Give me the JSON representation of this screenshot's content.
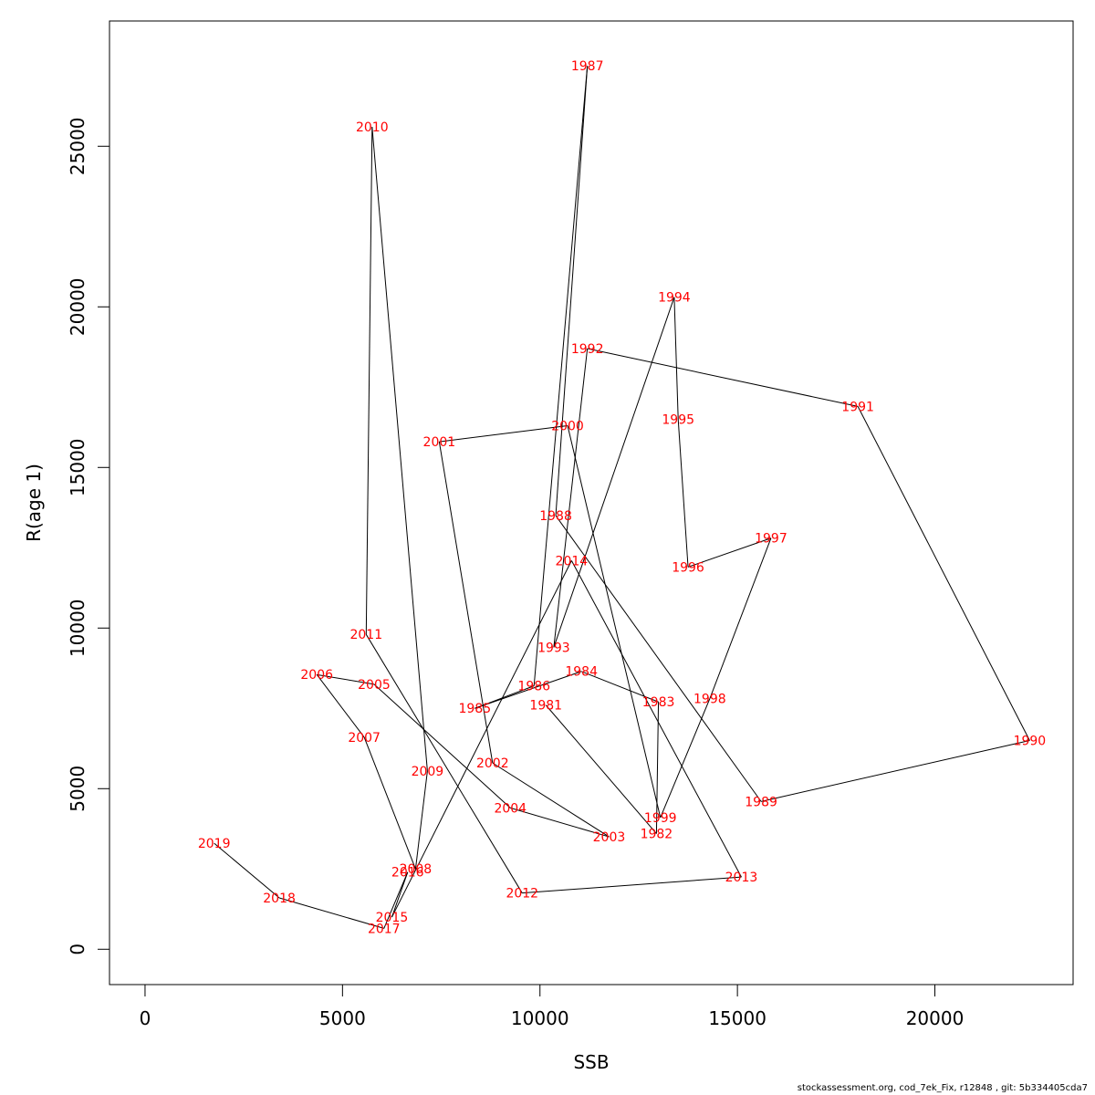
{
  "chart_data": {
    "type": "line",
    "title": "",
    "xlabel": "SSB",
    "ylabel": "R(age 1)",
    "xlim": [
      -900,
      23500
    ],
    "ylim": [
      -1100,
      28900
    ],
    "xticks": [
      0,
      5000,
      10000,
      15000,
      20000
    ],
    "yticks": [
      0,
      5000,
      10000,
      15000,
      20000,
      25000
    ],
    "line_color": "#000000",
    "label_color": "#ff0000",
    "grid": false,
    "points": [
      {
        "label": "1981",
        "x": 10150,
        "y": 7600
      },
      {
        "label": "1982",
        "x": 12950,
        "y": 3600
      },
      {
        "label": "1983",
        "x": 13000,
        "y": 7700
      },
      {
        "label": "1984",
        "x": 11050,
        "y": 8650
      },
      {
        "label": "1985",
        "x": 8350,
        "y": 7500
      },
      {
        "label": "1986",
        "x": 9850,
        "y": 8200
      },
      {
        "label": "1987",
        "x": 11200,
        "y": 27500
      },
      {
        "label": "1988",
        "x": 10400,
        "y": 13500
      },
      {
        "label": "1989",
        "x": 15600,
        "y": 4600
      },
      {
        "label": "1990",
        "x": 22400,
        "y": 6500
      },
      {
        "label": "1991",
        "x": 18050,
        "y": 16900
      },
      {
        "label": "1992",
        "x": 11200,
        "y": 18700
      },
      {
        "label": "1993",
        "x": 10350,
        "y": 9400
      },
      {
        "label": "1994",
        "x": 13400,
        "y": 20300
      },
      {
        "label": "1995",
        "x": 13500,
        "y": 16500
      },
      {
        "label": "1996",
        "x": 13750,
        "y": 11900
      },
      {
        "label": "1997",
        "x": 15850,
        "y": 12800
      },
      {
        "label": "1998",
        "x": 14300,
        "y": 7800
      },
      {
        "label": "1999",
        "x": 13050,
        "y": 4100
      },
      {
        "label": "2000",
        "x": 10700,
        "y": 16300
      },
      {
        "label": "2001",
        "x": 7450,
        "y": 15800
      },
      {
        "label": "2002",
        "x": 8800,
        "y": 5800
      },
      {
        "label": "2003",
        "x": 11750,
        "y": 3500
      },
      {
        "label": "2004",
        "x": 9250,
        "y": 4400
      },
      {
        "label": "2005",
        "x": 5800,
        "y": 8250
      },
      {
        "label": "2006",
        "x": 4350,
        "y": 8550
      },
      {
        "label": "2007",
        "x": 5550,
        "y": 6600
      },
      {
        "label": "2008",
        "x": 6850,
        "y": 2500
      },
      {
        "label": "2009",
        "x": 7150,
        "y": 5550
      },
      {
        "label": "2010",
        "x": 5750,
        "y": 25600
      },
      {
        "label": "2011",
        "x": 5600,
        "y": 9800
      },
      {
        "label": "2012",
        "x": 9550,
        "y": 1750
      },
      {
        "label": "2013",
        "x": 15100,
        "y": 2250
      },
      {
        "label": "2014",
        "x": 10800,
        "y": 12100
      },
      {
        "label": "2015",
        "x": 6250,
        "y": 1000
      },
      {
        "label": "2016",
        "x": 6650,
        "y": 2400
      },
      {
        "label": "2017",
        "x": 6050,
        "y": 650
      },
      {
        "label": "2018",
        "x": 3400,
        "y": 1600
      },
      {
        "label": "2019",
        "x": 1750,
        "y": 3300
      }
    ]
  },
  "footer": {
    "text": "stockassessment.org, cod_7ek_Fix, r12848 , git: 5b334405cda7"
  }
}
